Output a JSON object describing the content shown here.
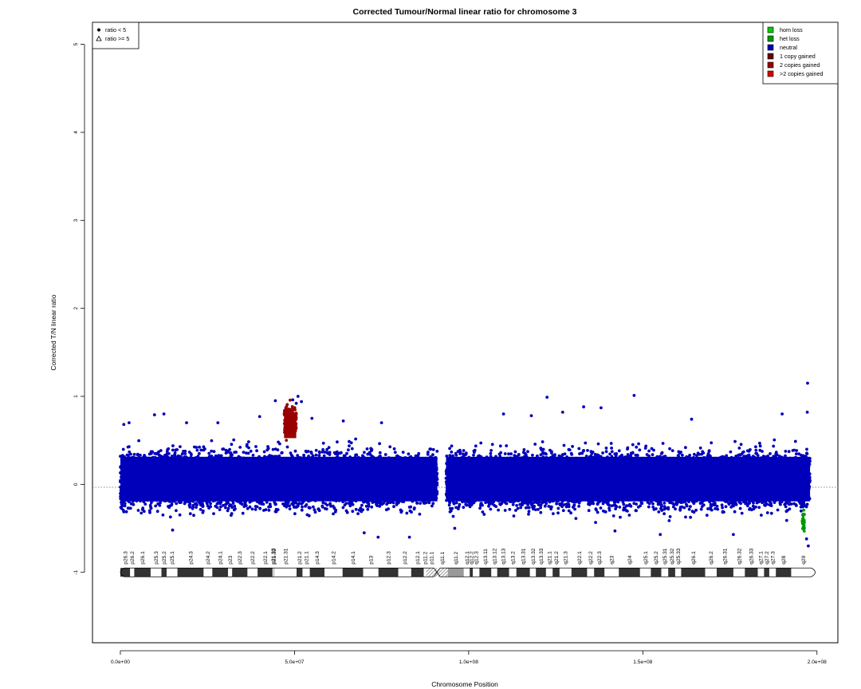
{
  "chart_data": {
    "type": "scatter",
    "title": "Corrected Tumour/Normal linear ratio for chromosome  3",
    "xlabel": "Chromosome Position",
    "ylabel": "Corrected T/N linear ratio",
    "xlim": [
      -8000000,
      206000000
    ],
    "ylim": [
      -1.8,
      5.25
    ],
    "x_ticks": [
      0,
      50000000,
      100000000,
      150000000,
      200000000
    ],
    "x_tick_labels": [
      "0.0e+00",
      "5.0e+07",
      "1.0e+08",
      "1.5e+08",
      "2.0e+08"
    ],
    "y_ticks": [
      -1,
      0,
      1,
      2,
      3,
      4,
      5
    ],
    "y_tick_labels": [
      "-1",
      "0",
      "1",
      "2",
      "3",
      "4",
      "5"
    ],
    "reference_line_y": 0,
    "shape_legend": {
      "position": "top-left",
      "entries": [
        {
          "symbol": "dot",
          "label": "ratio < 5"
        },
        {
          "symbol": "triangle",
          "label": "ratio >= 5"
        }
      ]
    },
    "color_legend": {
      "position": "top-right",
      "entries": [
        {
          "label": "hom loss",
          "color": "#00cc00"
        },
        {
          "label": "het loss",
          "color": "#009900"
        },
        {
          "label": "neutral",
          "color": "#0000bb"
        },
        {
          "label": "1 copy gained",
          "color": "#660000"
        },
        {
          "label": "2 copies gained",
          "color": "#990000"
        },
        {
          "label": ">2 copies gained",
          "color": "#dd0000"
        }
      ]
    },
    "series": [
      {
        "name": "neutral",
        "color": "#0000bb",
        "segments": [
          {
            "x_start": 0,
            "x_end": 91000000,
            "median": 0.05,
            "core_min": -0.33,
            "core_max": 0.45
          },
          {
            "x_start": 93500000,
            "x_end": 198000000,
            "median": 0.05,
            "core_min": -0.33,
            "core_max": 0.45
          }
        ],
        "outliers": [
          [
            1000000,
            0.68
          ],
          [
            2500000,
            0.7
          ],
          [
            9800000,
            0.79
          ],
          [
            12500000,
            0.8
          ],
          [
            19000000,
            0.7
          ],
          [
            28000000,
            0.7
          ],
          [
            40000000,
            0.77
          ],
          [
            44500000,
            0.95
          ],
          [
            47500000,
            0.86
          ],
          [
            49000000,
            0.85
          ],
          [
            49500000,
            0.96
          ],
          [
            50500000,
            0.92
          ],
          [
            51000000,
            1.0
          ],
          [
            52000000,
            0.94
          ],
          [
            55000000,
            0.75
          ],
          [
            64000000,
            0.72
          ],
          [
            75000000,
            0.7
          ],
          [
            110000000,
            0.8
          ],
          [
            118000000,
            0.78
          ],
          [
            122500000,
            0.99
          ],
          [
            127000000,
            0.82
          ],
          [
            133000000,
            0.88
          ],
          [
            138000000,
            0.87
          ],
          [
            147500000,
            1.01
          ],
          [
            164000000,
            0.74
          ],
          [
            190000000,
            0.8
          ],
          [
            197300000,
            1.15
          ],
          [
            197200000,
            0.82
          ],
          [
            15000000,
            -0.52
          ],
          [
            70000000,
            -0.55
          ],
          [
            74000000,
            -0.6
          ],
          [
            83000000,
            -0.6
          ],
          [
            96000000,
            -0.5
          ],
          [
            142000000,
            -0.53
          ],
          [
            155000000,
            -0.57
          ],
          [
            176000000,
            -0.57
          ],
          [
            197500000,
            -0.7
          ],
          [
            197000000,
            -0.62
          ]
        ]
      },
      {
        "name": "2 copies gained",
        "color": "#990000",
        "segments": [
          {
            "x_start": 47000000,
            "x_end": 50500000,
            "median": 0.72,
            "core_min": 0.45,
            "core_max": 0.88
          }
        ]
      },
      {
        "name": "het loss",
        "color": "#009900",
        "segments": [
          {
            "x_start": 195800000,
            "x_end": 196400000,
            "median": -0.42,
            "core_min": -0.53,
            "core_max": -0.3
          }
        ]
      }
    ],
    "ideogram": {
      "y": -1,
      "bands": [
        {
          "name": "p26.3",
          "start": 0,
          "end": 2800000,
          "stain": "gpos50"
        },
        {
          "name": "p26.2",
          "start": 2800000,
          "end": 4000000,
          "stain": "gneg"
        },
        {
          "name": "p26.1",
          "start": 4000000,
          "end": 8700000,
          "stain": "gpos50"
        },
        {
          "name": "p25.3",
          "start": 8700000,
          "end": 11800000,
          "stain": "gneg"
        },
        {
          "name": "p25.2",
          "start": 11800000,
          "end": 13300000,
          "stain": "gpos25"
        },
        {
          "name": "p25.1",
          "start": 13300000,
          "end": 16400000,
          "stain": "gneg"
        },
        {
          "name": "p24.3",
          "start": 16400000,
          "end": 23900000,
          "stain": "gpos100"
        },
        {
          "name": "p24.2",
          "start": 23900000,
          "end": 26400000,
          "stain": "gneg"
        },
        {
          "name": "p24.1",
          "start": 26400000,
          "end": 30900000,
          "stain": "gpos75"
        },
        {
          "name": "p23",
          "start": 30900000,
          "end": 32100000,
          "stain": "gneg"
        },
        {
          "name": "p22.3",
          "start": 32100000,
          "end": 36500000,
          "stain": "gpos50"
        },
        {
          "name": "p22.2",
          "start": 36500000,
          "end": 39400000,
          "stain": "gneg"
        },
        {
          "name": "p22.1",
          "start": 39400000,
          "end": 43700000,
          "stain": "gpos75"
        },
        {
          "name": "p21.33",
          "start": 43700000,
          "end": 44100000,
          "stain": "gneg"
        },
        {
          "name": "p21.32",
          "start": 44100000,
          "end": 44200000,
          "stain": "gpos50"
        },
        {
          "name": "p21.31",
          "start": 44200000,
          "end": 50600000,
          "stain": "gneg"
        },
        {
          "name": "p21.2",
          "start": 50600000,
          "end": 52300000,
          "stain": "gpos25"
        },
        {
          "name": "p21.1",
          "start": 52300000,
          "end": 54400000,
          "stain": "gneg"
        },
        {
          "name": "p14.3",
          "start": 54400000,
          "end": 58600000,
          "stain": "gpos50"
        },
        {
          "name": "p14.2",
          "start": 58600000,
          "end": 63800000,
          "stain": "gneg"
        },
        {
          "name": "p14.1",
          "start": 63800000,
          "end": 69700000,
          "stain": "gpos50"
        },
        {
          "name": "p13",
          "start": 69700000,
          "end": 74100000,
          "stain": "gneg"
        },
        {
          "name": "p12.3",
          "start": 74100000,
          "end": 79800000,
          "stain": "gpos75"
        },
        {
          "name": "p12.2",
          "start": 79800000,
          "end": 83500000,
          "stain": "gneg"
        },
        {
          "name": "p12.1",
          "start": 83500000,
          "end": 87100000,
          "stain": "gpos75"
        },
        {
          "name": "p11.2",
          "start": 87100000,
          "end": 87800000,
          "stain": "gneg"
        },
        {
          "name": "p11.1",
          "start": 87800000,
          "end": 90900000,
          "stain": "acen"
        },
        {
          "name": "q11.1",
          "start": 90900000,
          "end": 94000000,
          "stain": "acen"
        },
        {
          "name": "q11.2",
          "start": 94000000,
          "end": 98600000,
          "stain": "gvar"
        },
        {
          "name": "q12.1",
          "start": 98600000,
          "end": 100300000,
          "stain": "gneg"
        },
        {
          "name": "q12.2",
          "start": 100300000,
          "end": 101200000,
          "stain": "gpos25"
        },
        {
          "name": "q12.3",
          "start": 101200000,
          "end": 103100000,
          "stain": "gneg"
        },
        {
          "name": "q13.11",
          "start": 103100000,
          "end": 106500000,
          "stain": "gpos75"
        },
        {
          "name": "q13.12",
          "start": 106500000,
          "end": 108200000,
          "stain": "gneg"
        },
        {
          "name": "q13.13",
          "start": 108200000,
          "end": 111600000,
          "stain": "gpos50"
        },
        {
          "name": "q13.2",
          "start": 111600000,
          "end": 113700000,
          "stain": "gneg"
        },
        {
          "name": "q13.31",
          "start": 113700000,
          "end": 117600000,
          "stain": "gpos100"
        },
        {
          "name": "q13.32",
          "start": 117600000,
          "end": 119300000,
          "stain": "gneg"
        },
        {
          "name": "q13.33",
          "start": 119300000,
          "end": 122200000,
          "stain": "gpos75"
        },
        {
          "name": "q21.1",
          "start": 122200000,
          "end": 124100000,
          "stain": "gneg"
        },
        {
          "name": "q21.2",
          "start": 124100000,
          "end": 126100000,
          "stain": "gpos25"
        },
        {
          "name": "q21.3",
          "start": 126100000,
          "end": 129500000,
          "stain": "gneg"
        },
        {
          "name": "q22.1",
          "start": 129500000,
          "end": 134000000,
          "stain": "gpos25"
        },
        {
          "name": "q22.2",
          "start": 134000000,
          "end": 136000000,
          "stain": "gneg"
        },
        {
          "name": "q22.3",
          "start": 136000000,
          "end": 139000000,
          "stain": "gpos25"
        },
        {
          "name": "q23",
          "start": 139000000,
          "end": 143100000,
          "stain": "gneg"
        },
        {
          "name": "q24",
          "start": 143100000,
          "end": 149200000,
          "stain": "gpos100"
        },
        {
          "name": "q25.1",
          "start": 149200000,
          "end": 152300000,
          "stain": "gneg"
        },
        {
          "name": "q25.2",
          "start": 152300000,
          "end": 155300000,
          "stain": "gpos50"
        },
        {
          "name": "q25.31",
          "start": 155300000,
          "end": 157300000,
          "stain": "gneg"
        },
        {
          "name": "q25.32",
          "start": 157300000,
          "end": 159300000,
          "stain": "gpos50"
        },
        {
          "name": "q25.33",
          "start": 159300000,
          "end": 161000000,
          "stain": "gneg"
        },
        {
          "name": "q26.1",
          "start": 161000000,
          "end": 167900000,
          "stain": "gpos100"
        },
        {
          "name": "q26.2",
          "start": 167900000,
          "end": 171200000,
          "stain": "gneg"
        },
        {
          "name": "q26.31",
          "start": 171200000,
          "end": 176000000,
          "stain": "gpos75"
        },
        {
          "name": "q26.32",
          "start": 176000000,
          "end": 179300000,
          "stain": "gneg"
        },
        {
          "name": "q26.33",
          "start": 179300000,
          "end": 183000000,
          "stain": "gpos75"
        },
        {
          "name": "q27.1",
          "start": 183000000,
          "end": 184800000,
          "stain": "gneg"
        },
        {
          "name": "q27.2",
          "start": 184800000,
          "end": 186300000,
          "stain": "gpos25"
        },
        {
          "name": "q27.3",
          "start": 186300000,
          "end": 188200000,
          "stain": "gneg"
        },
        {
          "name": "q28",
          "start": 188200000,
          "end": 192600000,
          "stain": "gpos75"
        },
        {
          "name": "q29",
          "start": 192600000,
          "end": 199500000,
          "stain": "gneg"
        }
      ]
    }
  }
}
